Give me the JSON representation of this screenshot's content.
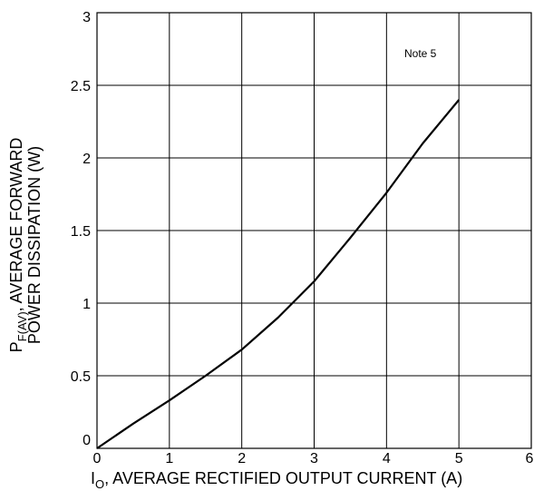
{
  "chart_data": {
    "type": "line",
    "title": "",
    "xlabel": {
      "prefix": "I",
      "subscript": "O",
      "text": ", AVERAGE RECTIFIED OUTPUT CURRENT (A)"
    },
    "ylabel": {
      "line1_prefix": "P",
      "line1_subscript": "F(AV)",
      "line1_text": ", AVERAGE FORWARD",
      "line2": "POWER DISSIPATION (W)"
    },
    "xlim": [
      0,
      6
    ],
    "ylim": [
      0,
      3
    ],
    "x_ticks": [
      "0",
      "1",
      "2",
      "3",
      "4",
      "5",
      "6"
    ],
    "y_ticks": [
      "0",
      "0.5",
      "1",
      "1.5",
      "2",
      "2.5",
      "3"
    ],
    "x_tick_values": [
      0,
      1,
      2,
      3,
      4,
      5,
      6
    ],
    "y_tick_values": [
      0,
      0.5,
      1,
      1.5,
      2,
      2.5,
      3
    ],
    "grid": true,
    "annotation": "Note 5",
    "series": [
      {
        "x": [
          0,
          0.5,
          1.0,
          1.5,
          2.0,
          2.5,
          3.0,
          3.5,
          4.0,
          4.5,
          5.0
        ],
        "y": [
          0,
          0.17,
          0.33,
          0.5,
          0.68,
          0.9,
          1.15,
          1.45,
          1.76,
          2.1,
          2.4
        ]
      }
    ],
    "colors": {
      "line": "#000000",
      "grid": "#000000"
    }
  }
}
